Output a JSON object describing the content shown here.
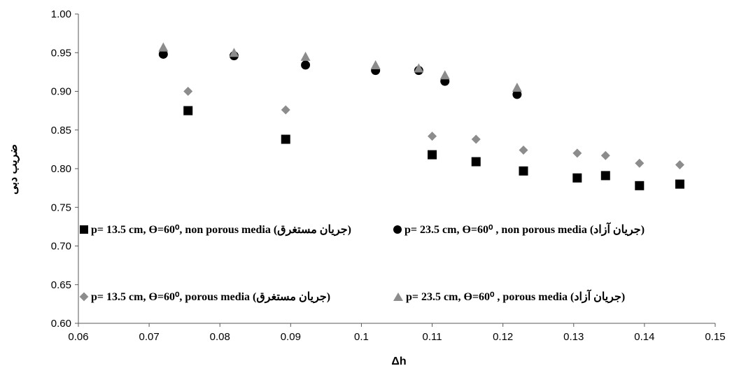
{
  "chart_data": {
    "type": "scatter",
    "xlabel": "Δh",
    "ylabel": "ضریب دبی",
    "xlim": [
      0.06,
      0.15
    ],
    "ylim": [
      0.6,
      1.0
    ],
    "x_ticks": [
      "0.06",
      "0.07",
      "0.08",
      "0.09",
      "0.1",
      "0.11",
      "0.12",
      "0.13",
      "0.14",
      "0.15"
    ],
    "y_ticks": [
      "0.60",
      "0.65",
      "0.70",
      "0.75",
      "0.80",
      "0.85",
      "0.90",
      "0.95",
      "1.00"
    ],
    "grid": false,
    "legend_placement": "inside-bottom",
    "series": [
      {
        "name": "p= 13.5 cm, Ɵ=60⁰, non porous media (جریان مستغرق)",
        "marker": "square",
        "color": "#000000",
        "x": [
          0.0755,
          0.0893,
          0.11,
          0.1162,
          0.1229,
          0.1305,
          0.1345,
          0.1393,
          0.145
        ],
        "y": [
          0.875,
          0.838,
          0.818,
          0.809,
          0.797,
          0.788,
          0.791,
          0.778,
          0.78
        ]
      },
      {
        "name": "p= 23.5 cm, Ɵ=60⁰ , non porous media (جریان آزاد)",
        "marker": "circle",
        "color": "#000000",
        "x": [
          0.072,
          0.082,
          0.0921,
          0.102,
          0.1081,
          0.1118,
          0.122
        ],
        "y": [
          0.948,
          0.946,
          0.934,
          0.927,
          0.927,
          0.913,
          0.896
        ]
      },
      {
        "name": "p= 13.5 cm, Ɵ=60⁰, porous media (جریان مستغرق)",
        "marker": "diamond",
        "color": "#8c8c8c",
        "x": [
          0.0755,
          0.0893,
          0.11,
          0.1162,
          0.1229,
          0.1305,
          0.1345,
          0.1393,
          0.145
        ],
        "y": [
          0.9,
          0.876,
          0.842,
          0.838,
          0.824,
          0.82,
          0.817,
          0.807,
          0.805
        ]
      },
      {
        "name": "p= 23.5 cm, Ɵ=60⁰ , porous media (جریان آزاد)",
        "marker": "triangle",
        "color": "#8c8c8c",
        "x": [
          0.072,
          0.082,
          0.0921,
          0.102,
          0.1081,
          0.1118,
          0.122
        ],
        "y": [
          0.956,
          0.949,
          0.944,
          0.933,
          0.929,
          0.92,
          0.904
        ]
      }
    ]
  }
}
